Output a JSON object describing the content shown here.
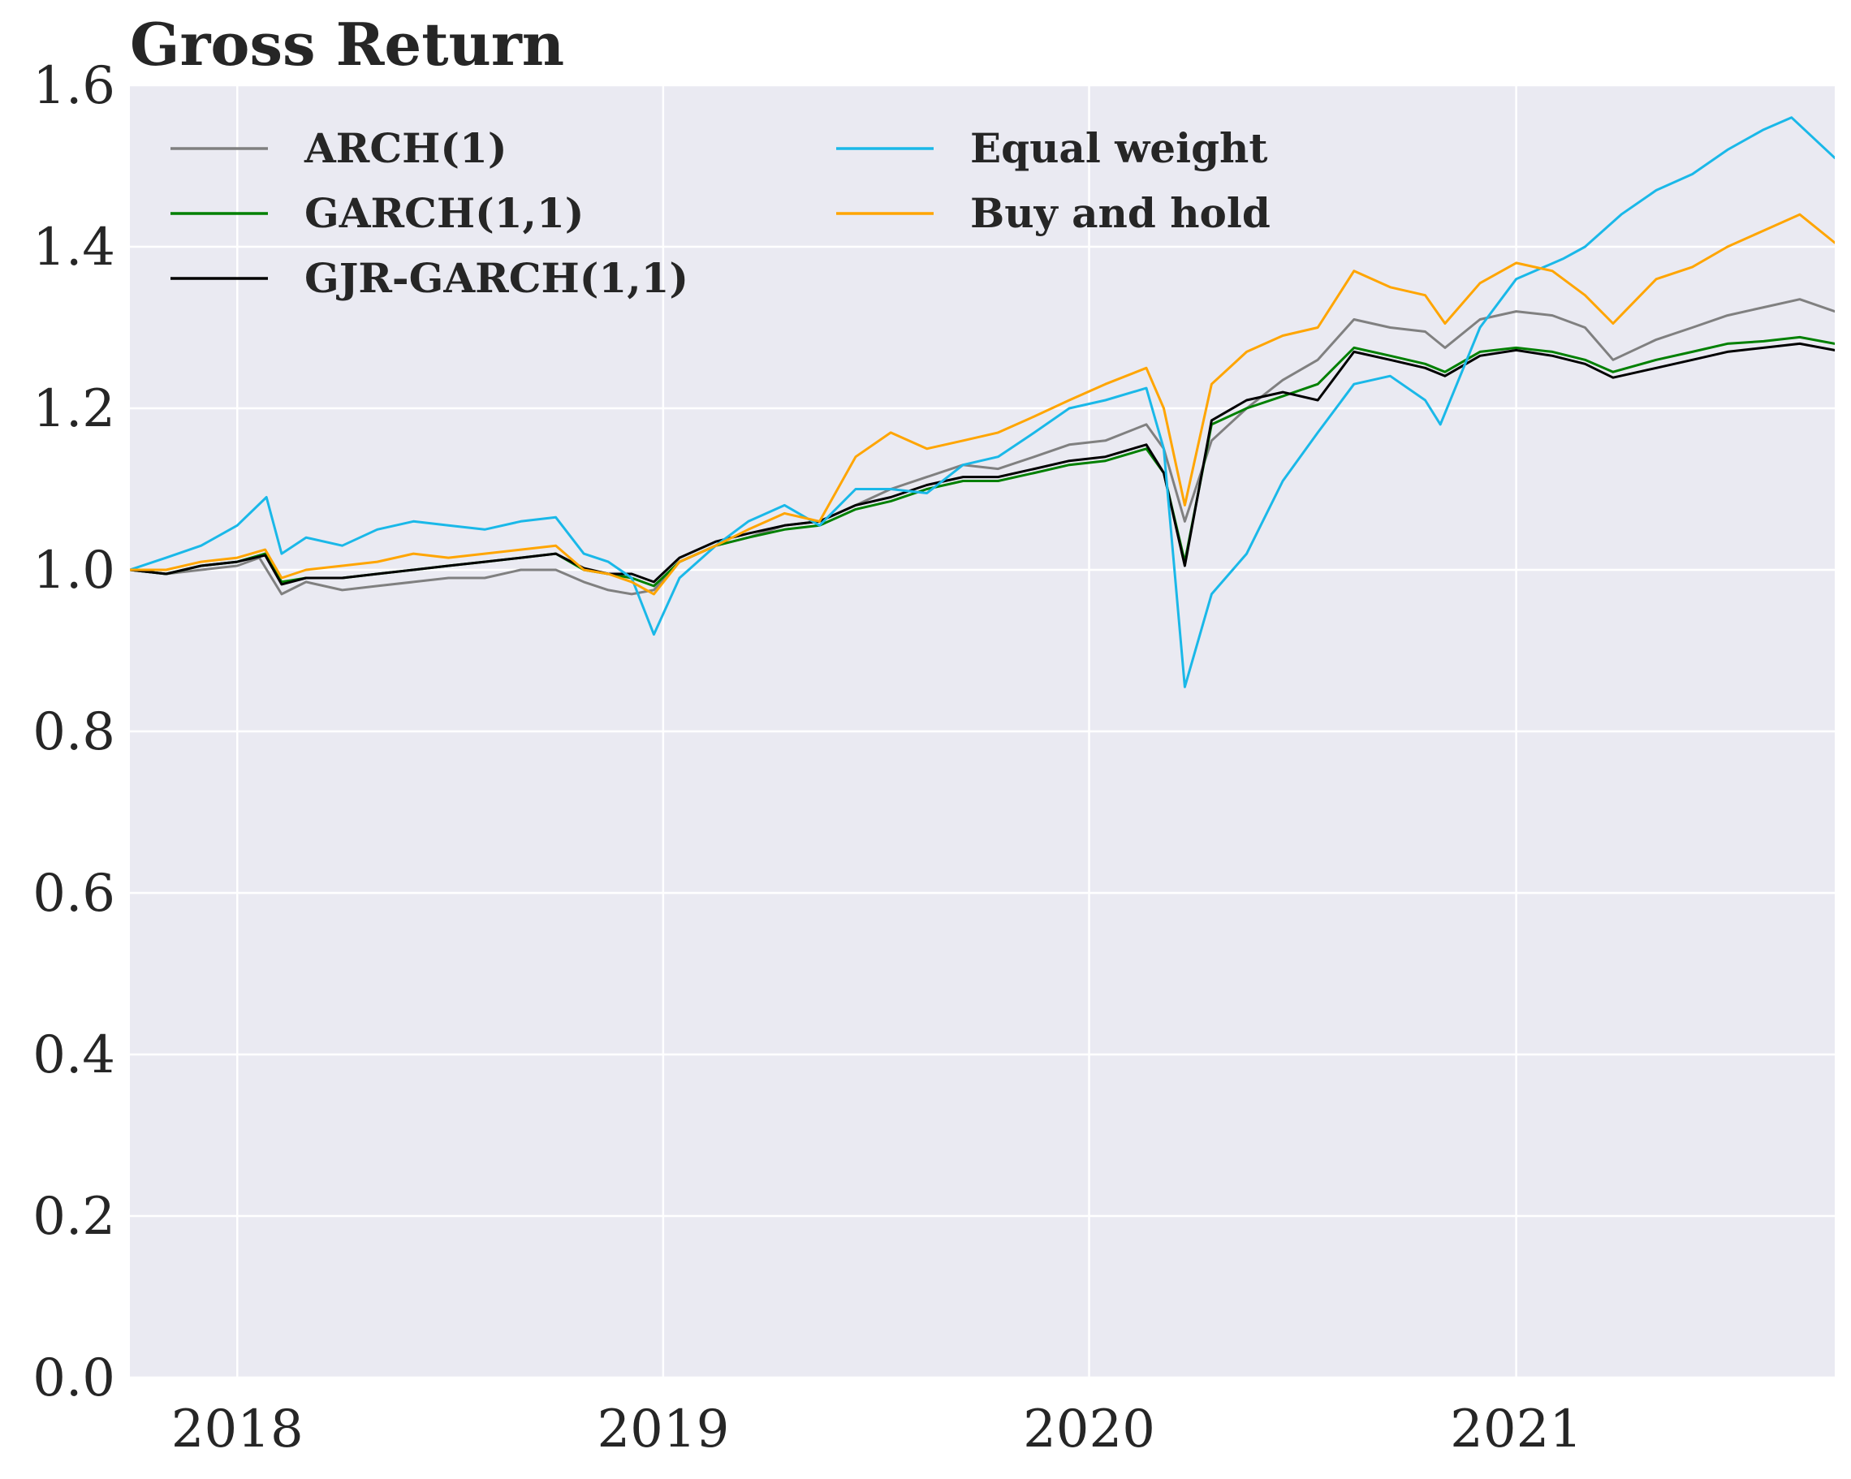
{
  "chart_data": {
    "type": "line",
    "title": "Gross Return",
    "xlabel": "",
    "ylabel": "",
    "xlim": [
      "2017-10-01",
      "2021-10-01"
    ],
    "ylim": [
      0.0,
      1.6
    ],
    "grid": true,
    "legend_position": "top-left",
    "background": "#eaeaf2",
    "x_ticks": [
      {
        "date": "2018-01-01",
        "label": "2018"
      },
      {
        "date": "2019-01-01",
        "label": "2019"
      },
      {
        "date": "2020-01-01",
        "label": "2020"
      },
      {
        "date": "2021-01-01",
        "label": "2021"
      }
    ],
    "y_ticks": [
      {
        "value": 0.0,
        "label": "0.0"
      },
      {
        "value": 0.2,
        "label": "0.2"
      },
      {
        "value": 0.4,
        "label": "0.4"
      },
      {
        "value": 0.6,
        "label": "0.6"
      },
      {
        "value": 0.8,
        "label": "0.8"
      },
      {
        "value": 1.0,
        "label": "1.0"
      },
      {
        "value": 1.2,
        "label": "1.2"
      },
      {
        "value": 1.4,
        "label": "1.4"
      },
      {
        "value": 1.6,
        "label": "1.6"
      }
    ],
    "series": [
      {
        "name": "ARCH(1)",
        "color": "#808080",
        "points": [
          [
            "2017-10-01",
            1.0
          ],
          [
            "2017-11-01",
            0.995
          ],
          [
            "2017-12-01",
            1.0
          ],
          [
            "2018-01-01",
            1.005
          ],
          [
            "2018-01-20",
            1.015
          ],
          [
            "2018-02-08",
            0.97
          ],
          [
            "2018-03-01",
            0.985
          ],
          [
            "2018-04-01",
            0.975
          ],
          [
            "2018-05-01",
            0.98
          ],
          [
            "2018-06-01",
            0.985
          ],
          [
            "2018-07-01",
            0.99
          ],
          [
            "2018-08-01",
            0.99
          ],
          [
            "2018-09-01",
            1.0
          ],
          [
            "2018-10-01",
            1.0
          ],
          [
            "2018-10-25",
            0.985
          ],
          [
            "2018-11-15",
            0.975
          ],
          [
            "2018-12-05",
            0.97
          ],
          [
            "2018-12-24",
            0.975
          ],
          [
            "2019-01-15",
            1.01
          ],
          [
            "2019-02-15",
            1.03
          ],
          [
            "2019-03-15",
            1.04
          ],
          [
            "2019-04-15",
            1.055
          ],
          [
            "2019-05-15",
            1.06
          ],
          [
            "2019-06-15",
            1.08
          ],
          [
            "2019-07-15",
            1.1
          ],
          [
            "2019-08-15",
            1.115
          ],
          [
            "2019-09-15",
            1.13
          ],
          [
            "2019-10-15",
            1.125
          ],
          [
            "2019-11-15",
            1.14
          ],
          [
            "2019-12-15",
            1.155
          ],
          [
            "2020-01-15",
            1.16
          ],
          [
            "2020-02-19",
            1.18
          ],
          [
            "2020-03-05",
            1.15
          ],
          [
            "2020-03-23",
            1.06
          ],
          [
            "2020-04-15",
            1.16
          ],
          [
            "2020-05-15",
            1.2
          ],
          [
            "2020-06-15",
            1.235
          ],
          [
            "2020-07-15",
            1.26
          ],
          [
            "2020-08-15",
            1.31
          ],
          [
            "2020-09-15",
            1.3
          ],
          [
            "2020-10-15",
            1.295
          ],
          [
            "2020-11-01",
            1.275
          ],
          [
            "2020-12-01",
            1.31
          ],
          [
            "2021-01-01",
            1.32
          ],
          [
            "2021-02-01",
            1.315
          ],
          [
            "2021-03-01",
            1.3
          ],
          [
            "2021-03-25",
            1.26
          ],
          [
            "2021-05-01",
            1.285
          ],
          [
            "2021-06-01",
            1.3
          ],
          [
            "2021-07-01",
            1.315
          ],
          [
            "2021-08-01",
            1.325
          ],
          [
            "2021-09-01",
            1.335
          ],
          [
            "2021-10-01",
            1.32
          ]
        ]
      },
      {
        "name": "GARCH(1,1)",
        "color": "#008000",
        "points": [
          [
            "2017-10-01",
            1.0
          ],
          [
            "2017-11-01",
            0.995
          ],
          [
            "2017-12-01",
            1.005
          ],
          [
            "2018-01-01",
            1.01
          ],
          [
            "2018-01-25",
            1.02
          ],
          [
            "2018-02-08",
            0.985
          ],
          [
            "2018-03-01",
            0.99
          ],
          [
            "2018-04-01",
            0.99
          ],
          [
            "2018-05-01",
            0.995
          ],
          [
            "2018-06-01",
            1.0
          ],
          [
            "2018-07-01",
            1.005
          ],
          [
            "2018-08-01",
            1.01
          ],
          [
            "2018-09-01",
            1.015
          ],
          [
            "2018-10-01",
            1.02
          ],
          [
            "2018-10-25",
            1.0
          ],
          [
            "2018-11-15",
            0.995
          ],
          [
            "2018-12-05",
            0.99
          ],
          [
            "2018-12-24",
            0.98
          ],
          [
            "2019-01-15",
            1.01
          ],
          [
            "2019-02-15",
            1.03
          ],
          [
            "2019-03-15",
            1.04
          ],
          [
            "2019-04-15",
            1.05
          ],
          [
            "2019-05-15",
            1.055
          ],
          [
            "2019-06-15",
            1.075
          ],
          [
            "2019-07-15",
            1.085
          ],
          [
            "2019-08-15",
            1.1
          ],
          [
            "2019-09-15",
            1.11
          ],
          [
            "2019-10-15",
            1.11
          ],
          [
            "2019-11-15",
            1.12
          ],
          [
            "2019-12-15",
            1.13
          ],
          [
            "2020-01-15",
            1.135
          ],
          [
            "2020-02-19",
            1.15
          ],
          [
            "2020-03-05",
            1.12
          ],
          [
            "2020-03-23",
            1.01
          ],
          [
            "2020-04-15",
            1.18
          ],
          [
            "2020-05-15",
            1.2
          ],
          [
            "2020-06-15",
            1.215
          ],
          [
            "2020-07-15",
            1.23
          ],
          [
            "2020-08-15",
            1.275
          ],
          [
            "2020-09-15",
            1.265
          ],
          [
            "2020-10-15",
            1.255
          ],
          [
            "2020-11-01",
            1.245
          ],
          [
            "2020-12-01",
            1.27
          ],
          [
            "2021-01-01",
            1.275
          ],
          [
            "2021-02-01",
            1.27
          ],
          [
            "2021-03-01",
            1.26
          ],
          [
            "2021-03-25",
            1.245
          ],
          [
            "2021-05-01",
            1.26
          ],
          [
            "2021-06-01",
            1.27
          ],
          [
            "2021-07-01",
            1.28
          ],
          [
            "2021-08-01",
            1.283
          ],
          [
            "2021-09-01",
            1.288
          ],
          [
            "2021-10-01",
            1.28
          ]
        ]
      },
      {
        "name": "GJR-GARCH(1,1)",
        "color": "#000000",
        "points": [
          [
            "2017-10-01",
            1.0
          ],
          [
            "2017-11-01",
            0.995
          ],
          [
            "2017-12-01",
            1.005
          ],
          [
            "2018-01-01",
            1.01
          ],
          [
            "2018-01-25",
            1.018
          ],
          [
            "2018-02-08",
            0.982
          ],
          [
            "2018-03-01",
            0.99
          ],
          [
            "2018-04-01",
            0.99
          ],
          [
            "2018-05-01",
            0.995
          ],
          [
            "2018-06-01",
            1.0
          ],
          [
            "2018-07-01",
            1.005
          ],
          [
            "2018-08-01",
            1.01
          ],
          [
            "2018-09-01",
            1.015
          ],
          [
            "2018-10-01",
            1.02
          ],
          [
            "2018-10-25",
            1.002
          ],
          [
            "2018-11-15",
            0.995
          ],
          [
            "2018-12-05",
            0.995
          ],
          [
            "2018-12-24",
            0.985
          ],
          [
            "2019-01-15",
            1.015
          ],
          [
            "2019-02-15",
            1.035
          ],
          [
            "2019-03-15",
            1.045
          ],
          [
            "2019-04-15",
            1.055
          ],
          [
            "2019-05-15",
            1.06
          ],
          [
            "2019-06-15",
            1.08
          ],
          [
            "2019-07-15",
            1.09
          ],
          [
            "2019-08-15",
            1.105
          ],
          [
            "2019-09-15",
            1.115
          ],
          [
            "2019-10-15",
            1.115
          ],
          [
            "2019-11-15",
            1.125
          ],
          [
            "2019-12-15",
            1.135
          ],
          [
            "2020-01-15",
            1.14
          ],
          [
            "2020-02-19",
            1.155
          ],
          [
            "2020-03-05",
            1.12
          ],
          [
            "2020-03-23",
            1.005
          ],
          [
            "2020-04-15",
            1.185
          ],
          [
            "2020-05-15",
            1.21
          ],
          [
            "2020-06-15",
            1.22
          ],
          [
            "2020-07-15",
            1.21
          ],
          [
            "2020-08-15",
            1.27
          ],
          [
            "2020-09-15",
            1.26
          ],
          [
            "2020-10-15",
            1.25
          ],
          [
            "2020-11-01",
            1.24
          ],
          [
            "2020-12-01",
            1.265
          ],
          [
            "2021-01-01",
            1.272
          ],
          [
            "2021-02-01",
            1.265
          ],
          [
            "2021-03-01",
            1.255
          ],
          [
            "2021-03-25",
            1.238
          ],
          [
            "2021-05-01",
            1.25
          ],
          [
            "2021-06-01",
            1.26
          ],
          [
            "2021-07-01",
            1.27
          ],
          [
            "2021-08-01",
            1.275
          ],
          [
            "2021-09-01",
            1.28
          ],
          [
            "2021-10-01",
            1.272
          ]
        ]
      },
      {
        "name": "Equal weight",
        "color": "#1ab8e8",
        "points": [
          [
            "2017-10-01",
            1.0
          ],
          [
            "2017-11-01",
            1.015
          ],
          [
            "2017-12-01",
            1.03
          ],
          [
            "2018-01-01",
            1.055
          ],
          [
            "2018-01-26",
            1.09
          ],
          [
            "2018-02-08",
            1.02
          ],
          [
            "2018-03-01",
            1.04
          ],
          [
            "2018-04-01",
            1.03
          ],
          [
            "2018-05-01",
            1.05
          ],
          [
            "2018-06-01",
            1.06
          ],
          [
            "2018-07-01",
            1.055
          ],
          [
            "2018-08-01",
            1.05
          ],
          [
            "2018-09-01",
            1.06
          ],
          [
            "2018-10-01",
            1.065
          ],
          [
            "2018-10-25",
            1.02
          ],
          [
            "2018-11-15",
            1.01
          ],
          [
            "2018-12-05",
            0.99
          ],
          [
            "2018-12-24",
            0.92
          ],
          [
            "2019-01-15",
            0.99
          ],
          [
            "2019-02-15",
            1.03
          ],
          [
            "2019-03-15",
            1.06
          ],
          [
            "2019-04-15",
            1.08
          ],
          [
            "2019-05-15",
            1.055
          ],
          [
            "2019-06-15",
            1.1
          ],
          [
            "2019-07-15",
            1.1
          ],
          [
            "2019-08-15",
            1.095
          ],
          [
            "2019-09-15",
            1.13
          ],
          [
            "2019-10-15",
            1.14
          ],
          [
            "2019-11-15",
            1.17
          ],
          [
            "2019-12-15",
            1.2
          ],
          [
            "2020-01-15",
            1.21
          ],
          [
            "2020-02-19",
            1.225
          ],
          [
            "2020-03-05",
            1.15
          ],
          [
            "2020-03-23",
            0.855
          ],
          [
            "2020-04-15",
            0.97
          ],
          [
            "2020-05-15",
            1.02
          ],
          [
            "2020-06-15",
            1.11
          ],
          [
            "2020-07-15",
            1.17
          ],
          [
            "2020-08-15",
            1.23
          ],
          [
            "2020-09-15",
            1.24
          ],
          [
            "2020-10-15",
            1.21
          ],
          [
            "2020-10-28",
            1.18
          ],
          [
            "2020-12-01",
            1.3
          ],
          [
            "2021-01-01",
            1.36
          ],
          [
            "2021-02-10",
            1.385
          ],
          [
            "2021-03-01",
            1.4
          ],
          [
            "2021-04-01",
            1.44
          ],
          [
            "2021-05-01",
            1.47
          ],
          [
            "2021-06-01",
            1.49
          ],
          [
            "2021-07-01",
            1.52
          ],
          [
            "2021-08-01",
            1.545
          ],
          [
            "2021-08-25",
            1.56
          ],
          [
            "2021-10-01",
            1.51
          ]
        ]
      },
      {
        "name": "Buy and hold",
        "color": "#ffa500",
        "points": [
          [
            "2017-10-01",
            1.0
          ],
          [
            "2017-11-01",
            1.0
          ],
          [
            "2017-12-01",
            1.01
          ],
          [
            "2018-01-01",
            1.015
          ],
          [
            "2018-01-25",
            1.025
          ],
          [
            "2018-02-08",
            0.99
          ],
          [
            "2018-03-01",
            1.0
          ],
          [
            "2018-04-01",
            1.005
          ],
          [
            "2018-05-01",
            1.01
          ],
          [
            "2018-06-01",
            1.02
          ],
          [
            "2018-07-01",
            1.015
          ],
          [
            "2018-08-01",
            1.02
          ],
          [
            "2018-09-01",
            1.025
          ],
          [
            "2018-10-01",
            1.03
          ],
          [
            "2018-10-25",
            1.0
          ],
          [
            "2018-11-15",
            0.995
          ],
          [
            "2018-12-05",
            0.985
          ],
          [
            "2018-12-24",
            0.97
          ],
          [
            "2019-01-15",
            1.01
          ],
          [
            "2019-02-15",
            1.03
          ],
          [
            "2019-03-15",
            1.05
          ],
          [
            "2019-04-15",
            1.07
          ],
          [
            "2019-05-15",
            1.06
          ],
          [
            "2019-06-15",
            1.14
          ],
          [
            "2019-07-15",
            1.17
          ],
          [
            "2019-08-15",
            1.15
          ],
          [
            "2019-09-15",
            1.16
          ],
          [
            "2019-10-15",
            1.17
          ],
          [
            "2019-11-15",
            1.19
          ],
          [
            "2019-12-15",
            1.21
          ],
          [
            "2020-01-15",
            1.23
          ],
          [
            "2020-02-19",
            1.25
          ],
          [
            "2020-03-05",
            1.2
          ],
          [
            "2020-03-23",
            1.08
          ],
          [
            "2020-04-15",
            1.23
          ],
          [
            "2020-05-15",
            1.27
          ],
          [
            "2020-06-15",
            1.29
          ],
          [
            "2020-07-15",
            1.3
          ],
          [
            "2020-08-15",
            1.37
          ],
          [
            "2020-09-15",
            1.35
          ],
          [
            "2020-10-15",
            1.34
          ],
          [
            "2020-11-01",
            1.305
          ],
          [
            "2020-12-01",
            1.355
          ],
          [
            "2021-01-01",
            1.38
          ],
          [
            "2021-02-01",
            1.37
          ],
          [
            "2021-03-01",
            1.34
          ],
          [
            "2021-03-25",
            1.305
          ],
          [
            "2021-05-01",
            1.36
          ],
          [
            "2021-06-01",
            1.375
          ],
          [
            "2021-07-01",
            1.4
          ],
          [
            "2021-08-01",
            1.42
          ],
          [
            "2021-09-01",
            1.44
          ],
          [
            "2021-10-01",
            1.405
          ]
        ]
      }
    ]
  }
}
